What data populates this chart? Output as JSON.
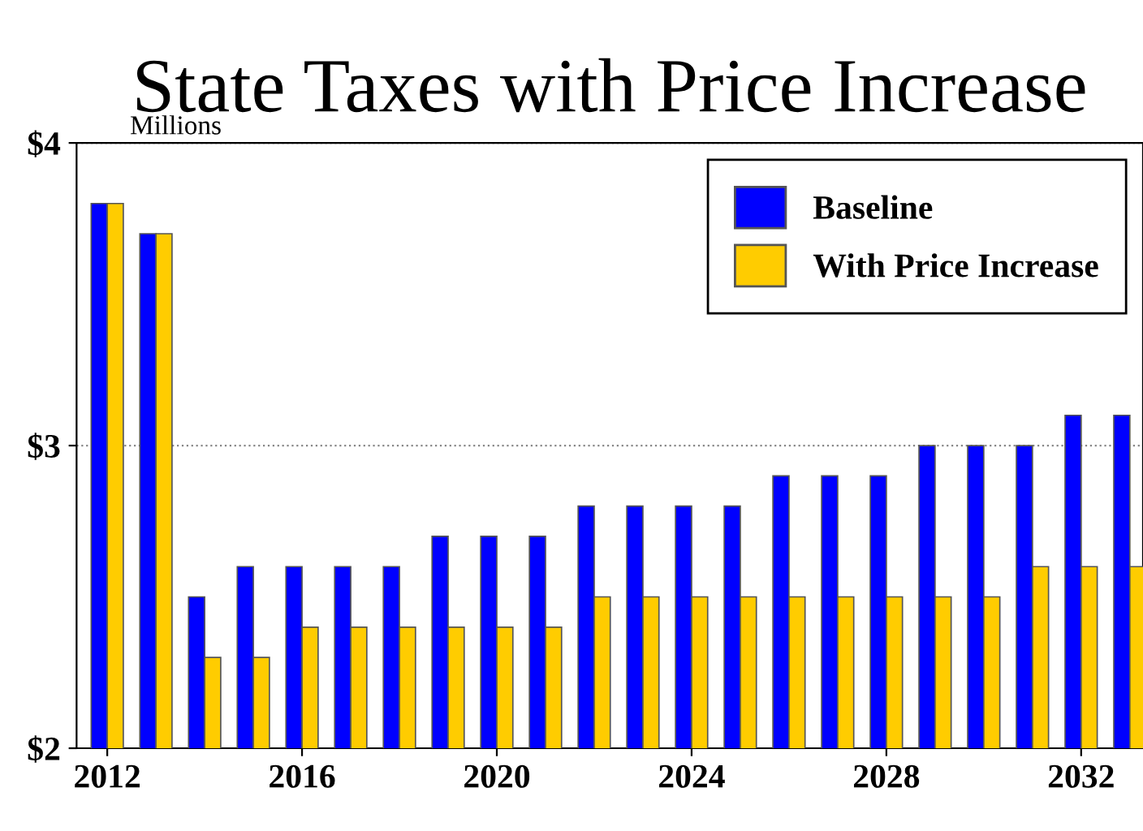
{
  "chart_data": {
    "type": "bar",
    "title": "State Taxes with Price Increase",
    "annotations": [
      "Millions"
    ],
    "x": [
      2012,
      2013,
      2014,
      2015,
      2016,
      2017,
      2018,
      2019,
      2020,
      2021,
      2022,
      2023,
      2024,
      2025,
      2026,
      2027,
      2028,
      2029,
      2030,
      2031,
      2032,
      2033
    ],
    "series": [
      {
        "name": "Baseline",
        "color": "#0000ff",
        "values": [
          3.8,
          3.7,
          2.5,
          2.6,
          2.6,
          2.6,
          2.6,
          2.7,
          2.7,
          2.7,
          2.8,
          2.8,
          2.8,
          2.8,
          2.9,
          2.9,
          2.9,
          3.0,
          3.0,
          3.0,
          3.1,
          3.1
        ]
      },
      {
        "name": "With Price Increase",
        "color": "#ffcc00",
        "values": [
          3.8,
          3.7,
          2.3,
          2.3,
          2.4,
          2.4,
          2.4,
          2.4,
          2.4,
          2.4,
          2.5,
          2.5,
          2.5,
          2.5,
          2.5,
          2.5,
          2.5,
          2.5,
          2.5,
          2.6,
          2.6,
          2.6
        ]
      }
    ],
    "xlim": [
      2011.37,
      2033.27
    ],
    "xticks": [
      2012,
      2016,
      2020,
      2024,
      2028,
      2032
    ],
    "ylim": [
      2,
      4
    ],
    "yticks": [
      {
        "value": 2,
        "label": "$2"
      },
      {
        "value": 3,
        "label": "$3"
      },
      {
        "value": 4,
        "label": "$4"
      }
    ],
    "grid": "y",
    "legend": "top right"
  }
}
